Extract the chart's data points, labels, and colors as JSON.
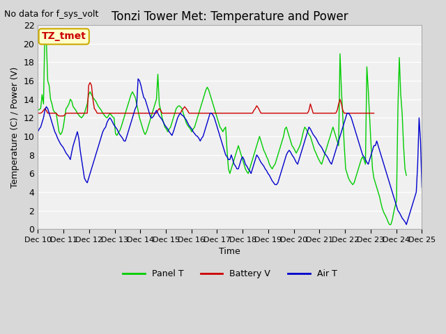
{
  "title": "Tonzi Tower Met: Temperature and Power",
  "no_data_text": "No data for f_sys_volt",
  "ylabel": "Temperature (C) / Power (V)",
  "xlabel": "Time",
  "ylim": [
    0,
    22
  ],
  "yticks": [
    0,
    2,
    4,
    6,
    8,
    10,
    12,
    14,
    16,
    18,
    20,
    22
  ],
  "bg_color": "#e8e8e8",
  "plot_bg_color": "#f0f0f0",
  "annotation_text": "TZ_tmet",
  "annotation_box_color": "#ffffcc",
  "annotation_box_edge": "#ccaa00",
  "legend_entries": [
    "Panel T",
    "Battery V",
    "Air T"
  ],
  "line_colors": [
    "#00cc00",
    "#cc0000",
    "#0000cc"
  ],
  "x_tick_labels": [
    "Dec 10",
    "Dec 11",
    "Dec 12",
    "Dec 13",
    "Dec 14",
    "Dec 15",
    "Dec 16",
    "Dec 17",
    "Dec 18",
    "Dec 19",
    "Dec 20",
    "Dec 21",
    "Dec 22",
    "Dec 23",
    "Dec 24",
    "Dec 25"
  ],
  "num_days": 15,
  "panel_t": [
    12.8,
    12.9,
    13.0,
    14.5,
    13.5,
    21.5,
    20.4,
    16.0,
    15.5,
    14.0,
    13.5,
    12.8,
    12.6,
    12.5,
    11.5,
    10.5,
    10.2,
    10.4,
    11.0,
    12.0,
    13.0,
    13.2,
    13.5,
    14.0,
    13.8,
    13.2,
    13.0,
    12.8,
    12.5,
    12.3,
    12.1,
    12.0,
    12.2,
    12.5,
    13.0,
    13.5,
    14.5,
    14.8,
    14.5,
    14.2,
    14.0,
    13.8,
    13.5,
    13.2,
    13.0,
    12.8,
    12.5,
    12.3,
    12.1,
    12.0,
    12.2,
    12.5,
    12.3,
    12.1,
    12.0,
    10.3,
    10.1,
    10.4,
    10.6,
    11.0,
    11.5,
    12.0,
    12.5,
    13.0,
    13.5,
    14.0,
    14.5,
    14.8,
    14.5,
    14.2,
    13.5,
    12.8,
    12.0,
    11.5,
    11.0,
    10.5,
    10.2,
    10.5,
    11.0,
    11.5,
    12.0,
    12.5,
    13.0,
    13.5,
    14.0,
    16.7,
    13.5,
    12.8,
    12.0,
    11.5,
    11.0,
    10.8,
    10.5,
    10.8,
    11.0,
    11.5,
    12.0,
    12.5,
    13.0,
    13.2,
    13.3,
    13.2,
    13.0,
    12.5,
    12.0,
    11.5,
    11.2,
    11.0,
    10.8,
    10.5,
    10.8,
    11.0,
    11.5,
    12.0,
    12.5,
    13.0,
    13.5,
    14.0,
    14.5,
    15.0,
    15.3,
    15.0,
    14.5,
    14.0,
    13.5,
    13.0,
    12.5,
    12.0,
    11.5,
    11.0,
    10.8,
    10.5,
    10.8,
    11.0,
    8.5,
    6.5,
    6.0,
    6.5,
    7.0,
    7.5,
    8.0,
    8.5,
    9.0,
    8.5,
    8.0,
    7.5,
    7.0,
    6.5,
    6.2,
    6.0,
    6.5,
    7.0,
    7.5,
    8.0,
    8.5,
    9.0,
    9.5,
    10.0,
    9.5,
    9.0,
    8.5,
    8.2,
    7.8,
    7.5,
    7.0,
    6.7,
    6.5,
    6.8,
    7.0,
    7.5,
    8.0,
    8.5,
    9.0,
    9.5,
    10.0,
    10.8,
    11.0,
    10.5,
    10.0,
    9.5,
    9.0,
    8.8,
    8.5,
    8.2,
    8.5,
    8.8,
    9.2,
    9.8,
    10.5,
    11.0,
    10.8,
    10.5,
    10.2,
    10.0,
    9.5,
    9.0,
    8.5,
    8.2,
    7.8,
    7.5,
    7.2,
    7.0,
    7.5,
    8.0,
    8.5,
    9.0,
    9.5,
    10.0,
    10.5,
    11.0,
    10.5,
    10.0,
    9.5,
    9.0,
    18.9,
    15.0,
    12.0,
    9.0,
    6.5,
    6.0,
    5.5,
    5.2,
    5.0,
    4.8,
    5.0,
    5.5,
    6.0,
    6.5,
    7.0,
    7.5,
    7.8,
    7.5,
    7.0,
    17.5,
    15.0,
    12.0,
    9.0,
    6.5,
    5.5,
    5.0,
    4.5,
    4.0,
    3.5,
    2.8,
    2.2,
    1.8,
    1.5,
    1.2,
    0.8,
    0.5,
    0.5,
    1.0,
    1.8,
    2.5,
    3.0,
    13.0,
    18.5,
    14.5,
    12.5,
    9.0,
    6.5,
    5.8
  ],
  "battery_v": [
    12.5,
    12.5,
    12.5,
    12.6,
    12.8,
    13.0,
    12.8,
    12.5,
    12.5,
    12.5,
    12.5,
    12.5,
    12.5,
    12.5,
    12.3,
    12.2,
    12.2,
    12.2,
    12.2,
    12.3,
    12.5,
    12.5,
    12.5,
    12.5,
    12.5,
    12.5,
    12.5,
    12.5,
    12.5,
    12.5,
    12.5,
    12.5,
    12.5,
    12.5,
    12.5,
    12.5,
    15.5,
    15.8,
    15.5,
    14.0,
    13.0,
    12.8,
    12.5,
    12.5,
    12.5,
    12.5,
    12.5,
    12.5,
    12.5,
    12.5,
    12.5,
    12.5,
    12.5,
    12.5,
    12.5,
    12.5,
    12.5,
    12.5,
    12.5,
    12.5,
    12.5,
    12.5,
    12.5,
    12.5,
    12.5,
    12.5,
    12.5,
    12.5,
    12.5,
    12.5,
    12.5,
    12.5,
    12.5,
    12.5,
    12.5,
    12.5,
    12.5,
    12.5,
    12.5,
    12.5,
    12.5,
    12.5,
    12.5,
    12.5,
    12.5,
    12.8,
    13.0,
    12.8,
    12.5,
    12.5,
    12.5,
    12.5,
    12.5,
    12.5,
    12.5,
    12.5,
    12.5,
    12.5,
    12.5,
    12.5,
    12.5,
    12.5,
    12.8,
    13.0,
    13.2,
    13.0,
    12.8,
    12.5,
    12.5,
    12.5,
    12.5,
    12.5,
    12.5,
    12.5,
    12.5,
    12.5,
    12.5,
    12.5,
    12.5,
    12.5,
    12.5,
    12.5,
    12.5,
    12.5,
    12.5,
    12.5,
    12.5,
    12.5,
    12.5,
    12.5,
    12.5,
    12.5,
    12.5,
    12.5,
    12.5,
    12.5,
    12.5,
    12.5,
    12.5,
    12.5,
    12.5,
    12.5,
    12.5,
    12.5,
    12.5,
    12.5,
    12.5,
    12.5,
    12.5,
    12.5,
    12.5,
    12.5,
    12.5,
    12.8,
    13.0,
    13.3,
    13.1,
    12.8,
    12.5,
    12.5,
    12.5,
    12.5,
    12.5,
    12.5,
    12.5,
    12.5,
    12.5,
    12.5,
    12.5,
    12.5,
    12.5,
    12.5,
    12.5,
    12.5,
    12.5,
    12.5,
    12.5,
    12.5,
    12.5,
    12.5,
    12.5,
    12.5,
    12.5,
    12.5,
    12.5,
    12.5,
    12.5,
    12.5,
    12.5,
    12.5,
    12.5,
    12.5,
    12.8,
    13.5,
    13.0,
    12.5,
    12.5,
    12.5,
    12.5,
    12.5,
    12.5,
    12.5,
    12.5,
    12.5,
    12.5,
    12.5,
    12.5,
    12.5,
    12.5,
    12.5,
    12.5,
    12.5,
    12.8,
    13.5,
    14.0,
    13.5,
    12.8,
    12.5,
    12.5,
    12.5,
    12.5,
    12.5,
    12.5,
    12.5,
    12.5,
    12.5,
    12.5,
    12.5,
    12.5,
    12.5,
    12.5,
    12.5,
    12.5,
    12.5,
    12.5,
    12.5,
    12.5,
    12.5,
    12.5
  ],
  "air_t": [
    10.5,
    10.8,
    11.0,
    11.5,
    12.0,
    12.8,
    13.2,
    13.0,
    12.5,
    12.0,
    11.5,
    11.0,
    10.5,
    10.2,
    9.8,
    9.5,
    9.2,
    9.0,
    8.8,
    8.5,
    8.2,
    8.0,
    7.8,
    7.5,
    8.3,
    9.0,
    9.5,
    10.0,
    10.5,
    9.8,
    8.5,
    7.5,
    6.5,
    5.5,
    5.2,
    5.0,
    5.5,
    6.0,
    6.5,
    7.0,
    7.5,
    8.0,
    8.5,
    9.0,
    9.5,
    10.0,
    10.5,
    10.8,
    11.0,
    11.5,
    11.8,
    12.0,
    11.8,
    11.5,
    11.2,
    11.0,
    10.8,
    10.5,
    10.2,
    10.0,
    9.8,
    9.5,
    9.5,
    10.0,
    10.5,
    11.0,
    11.5,
    12.0,
    12.5,
    13.0,
    13.3,
    16.2,
    16.0,
    15.5,
    14.8,
    14.2,
    14.0,
    13.5,
    13.0,
    12.5,
    12.0,
    12.0,
    12.2,
    12.5,
    12.8,
    12.5,
    12.2,
    12.0,
    11.8,
    11.5,
    11.2,
    11.0,
    10.8,
    10.5,
    10.3,
    10.1,
    10.5,
    11.0,
    11.5,
    12.0,
    12.3,
    12.5,
    12.3,
    12.2,
    12.0,
    11.8,
    11.5,
    11.2,
    11.0,
    10.8,
    10.5,
    10.3,
    10.1,
    10.0,
    9.8,
    9.5,
    9.8,
    10.0,
    10.5,
    11.0,
    11.5,
    12.0,
    12.5,
    12.5,
    12.3,
    12.0,
    11.5,
    11.0,
    10.5,
    10.0,
    9.5,
    9.0,
    8.5,
    8.0,
    7.8,
    7.5,
    7.5,
    8.0,
    7.5,
    7.0,
    6.8,
    6.5,
    6.5,
    7.0,
    7.5,
    7.8,
    7.5,
    7.0,
    6.8,
    6.5,
    6.3,
    6.0,
    6.5,
    7.0,
    7.5,
    8.0,
    7.8,
    7.5,
    7.2,
    7.0,
    6.8,
    6.5,
    6.3,
    6.0,
    5.8,
    5.5,
    5.2,
    5.0,
    4.8,
    4.8,
    5.0,
    5.5,
    6.0,
    6.5,
    7.0,
    7.5,
    8.0,
    8.3,
    8.5,
    8.3,
    8.0,
    7.8,
    7.5,
    7.2,
    7.0,
    7.5,
    8.0,
    8.5,
    9.0,
    9.5,
    10.0,
    10.5,
    11.0,
    10.8,
    10.5,
    10.2,
    10.0,
    9.8,
    9.5,
    9.2,
    9.0,
    8.8,
    8.5,
    8.2,
    8.0,
    7.8,
    7.5,
    7.2,
    7.0,
    7.5,
    8.0,
    8.5,
    9.0,
    9.5,
    10.0,
    10.5,
    11.0,
    11.5,
    12.0,
    12.5,
    12.5,
    12.3,
    12.0,
    11.5,
    11.0,
    10.5,
    10.0,
    9.5,
    9.0,
    8.5,
    8.0,
    7.8,
    7.5,
    7.2,
    7.0,
    7.5,
    8.0,
    8.5,
    9.0,
    9.0,
    9.5,
    9.0,
    8.5,
    8.0,
    7.5,
    7.0,
    6.5,
    6.0,
    5.5,
    5.0,
    4.5,
    4.0,
    3.5,
    3.0,
    2.5,
    2.0,
    1.8,
    1.5,
    1.2,
    1.0,
    0.8,
    0.5,
    1.0,
    1.5,
    2.0,
    2.5,
    3.0,
    3.5,
    4.0,
    7.0,
    12.0,
    9.5,
    4.5
  ]
}
